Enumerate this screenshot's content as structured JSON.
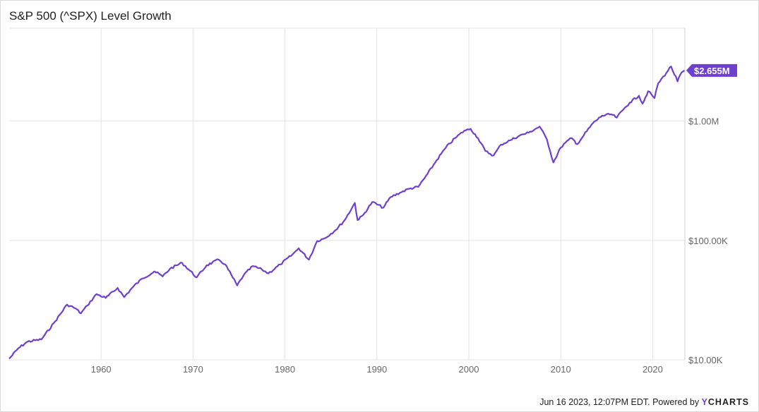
{
  "title": "S&P 500 (^SPX) Level Growth",
  "footer": {
    "timestamp": "Jun 16 2023, 12:07PM EDT.",
    "powered_by": "Powered by",
    "brand_y": "Y",
    "brand_rest": "CHARTS"
  },
  "colors": {
    "line": "#6f3fd1",
    "grid": "#e3e3e3",
    "badge": "#6f3fd1"
  },
  "chart_data": {
    "type": "line",
    "title": "S&P 500 (^SPX) Level Growth",
    "y_scale": "log",
    "ylim": [
      10000,
      6000000
    ],
    "xlim": [
      1950.0,
      2023.5
    ],
    "y_ticks": [
      {
        "value": 10000,
        "label": "$10.00K"
      },
      {
        "value": 100000,
        "label": "$100.00K"
      },
      {
        "value": 1000000,
        "label": "$1.00M"
      }
    ],
    "x_ticks": [
      {
        "value": 1960,
        "label": "1960"
      },
      {
        "value": 1970,
        "label": "1970"
      },
      {
        "value": 1980,
        "label": "1980"
      },
      {
        "value": 1990,
        "label": "1990"
      },
      {
        "value": 2000,
        "label": "2000"
      },
      {
        "value": 2010,
        "label": "2010"
      },
      {
        "value": 2020,
        "label": "2020"
      }
    ],
    "last_value_label": "$2.655M",
    "grid": true,
    "series": [
      {
        "x": [
          1950.0,
          1951.0,
          1952.0,
          1953.5,
          1955.0,
          1956.3,
          1957.2,
          1957.8,
          1958.5,
          1959.5,
          1960.5,
          1961.8,
          1962.5,
          1963.5,
          1964.5,
          1965.8,
          1966.7,
          1967.5,
          1968.8,
          1970.4,
          1971.5,
          1972.8,
          1973.5,
          1974.8,
          1975.5,
          1976.5,
          1977.5,
          1978.2,
          1979.5,
          1980.8,
          1981.5,
          1982.6,
          1983.5,
          1984.3,
          1985.5,
          1986.5,
          1987.6,
          1987.9,
          1988.5,
          1989.5,
          1990.7,
          1991.5,
          1992.5,
          1993.5,
          1994.5,
          1995.5,
          1996.5,
          1997.5,
          1998.5,
          1999.5,
          2000.2,
          2001.0,
          2001.8,
          2002.7,
          2003.5,
          2004.5,
          2005.5,
          2006.5,
          2007.7,
          2008.5,
          2009.2,
          2010.0,
          2010.5,
          2011.2,
          2011.8,
          2012.5,
          2013.5,
          2014.5,
          2015.5,
          2016.1,
          2016.8,
          2017.5,
          2018.5,
          2018.9,
          2019.5,
          2020.2,
          2020.6,
          2021.5,
          2022.0,
          2022.7,
          2023.0,
          2023.46
        ],
        "values": [
          10200,
          12500,
          14200,
          14800,
          21000,
          29000,
          27000,
          24500,
          28500,
          35500,
          33000,
          40000,
          33500,
          41000,
          48000,
          55000,
          50000,
          58000,
          65000,
          49000,
          62000,
          69000,
          63000,
          42000,
          51000,
          61000,
          57000,
          53000,
          63000,
          76000,
          86000,
          69000,
          99000,
          104000,
          122000,
          148000,
          206000,
          148000,
          163000,
          210000,
          188000,
          231000,
          251000,
          271000,
          281000,
          360000,
          470000,
          600000,
          720000,
          830000,
          860000,
          720000,
          560000,
          515000,
          635000,
          690000,
          755000,
          800000,
          900000,
          700000,
          450000,
          600000,
          660000,
          720000,
          640000,
          760000,
          960000,
          1110000,
          1140000,
          1070000,
          1250000,
          1430000,
          1630000,
          1400000,
          1780000,
          1560000,
          2070000,
          2550000,
          2870000,
          2150000,
          2450000,
          2655000
        ]
      }
    ]
  }
}
